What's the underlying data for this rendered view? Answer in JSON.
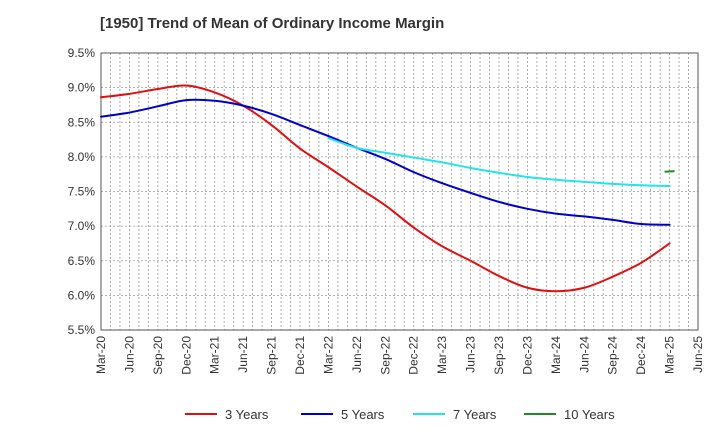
{
  "chart_data": {
    "type": "line",
    "title": "[1950]  Trend of Mean of Ordinary Income Margin",
    "xlabel": "",
    "ylabel": "",
    "grid": true,
    "legend_position": "bottom",
    "x": [
      "Mar-20",
      "Jun-20",
      "Sep-20",
      "Dec-20",
      "Mar-21",
      "Jun-21",
      "Sep-21",
      "Dec-21",
      "Mar-22",
      "Jun-22",
      "Sep-22",
      "Dec-22",
      "Mar-23",
      "Jun-23",
      "Sep-23",
      "Dec-23",
      "Mar-24",
      "Jun-24",
      "Sep-24",
      "Dec-24",
      "Mar-25",
      "Jun-25"
    ],
    "ylim": [
      5.5,
      9.5
    ],
    "yticks": [
      "5.5%",
      "6.0%",
      "6.5%",
      "7.0%",
      "7.5%",
      "8.0%",
      "8.5%",
      "9.0%",
      "9.5%"
    ],
    "ytick_values": [
      5.5,
      6.0,
      6.5,
      7.0,
      7.5,
      8.0,
      8.5,
      9.0,
      9.5
    ],
    "series": [
      {
        "name": "3 Years",
        "color": "#dd1111",
        "values": [
          8.86,
          8.91,
          8.98,
          9.03,
          8.93,
          8.74,
          8.46,
          8.12,
          7.85,
          7.57,
          7.3,
          6.98,
          6.71,
          6.5,
          6.28,
          6.11,
          6.06,
          6.11,
          6.27,
          6.47,
          6.75,
          null
        ]
      },
      {
        "name": "5 Years",
        "color": "#0000cc",
        "values": [
          8.58,
          8.64,
          8.73,
          8.82,
          8.81,
          8.74,
          8.62,
          8.46,
          8.3,
          8.13,
          7.97,
          7.78,
          7.62,
          7.48,
          7.35,
          7.25,
          7.18,
          7.14,
          7.09,
          7.03,
          7.02,
          null
        ]
      },
      {
        "name": "7 Years",
        "color": "#22e5e5",
        "values": [
          null,
          null,
          null,
          null,
          null,
          null,
          null,
          null,
          8.27,
          8.13,
          8.06,
          7.99,
          7.92,
          7.84,
          7.77,
          7.71,
          7.67,
          7.64,
          7.61,
          7.59,
          7.58,
          null
        ]
      },
      {
        "name": "10 Years",
        "color": "#228822",
        "values": [
          null,
          null,
          null,
          null,
          null,
          null,
          null,
          null,
          null,
          null,
          null,
          null,
          null,
          null,
          null,
          null,
          null,
          null,
          null,
          null,
          7.79,
          null
        ]
      }
    ]
  }
}
